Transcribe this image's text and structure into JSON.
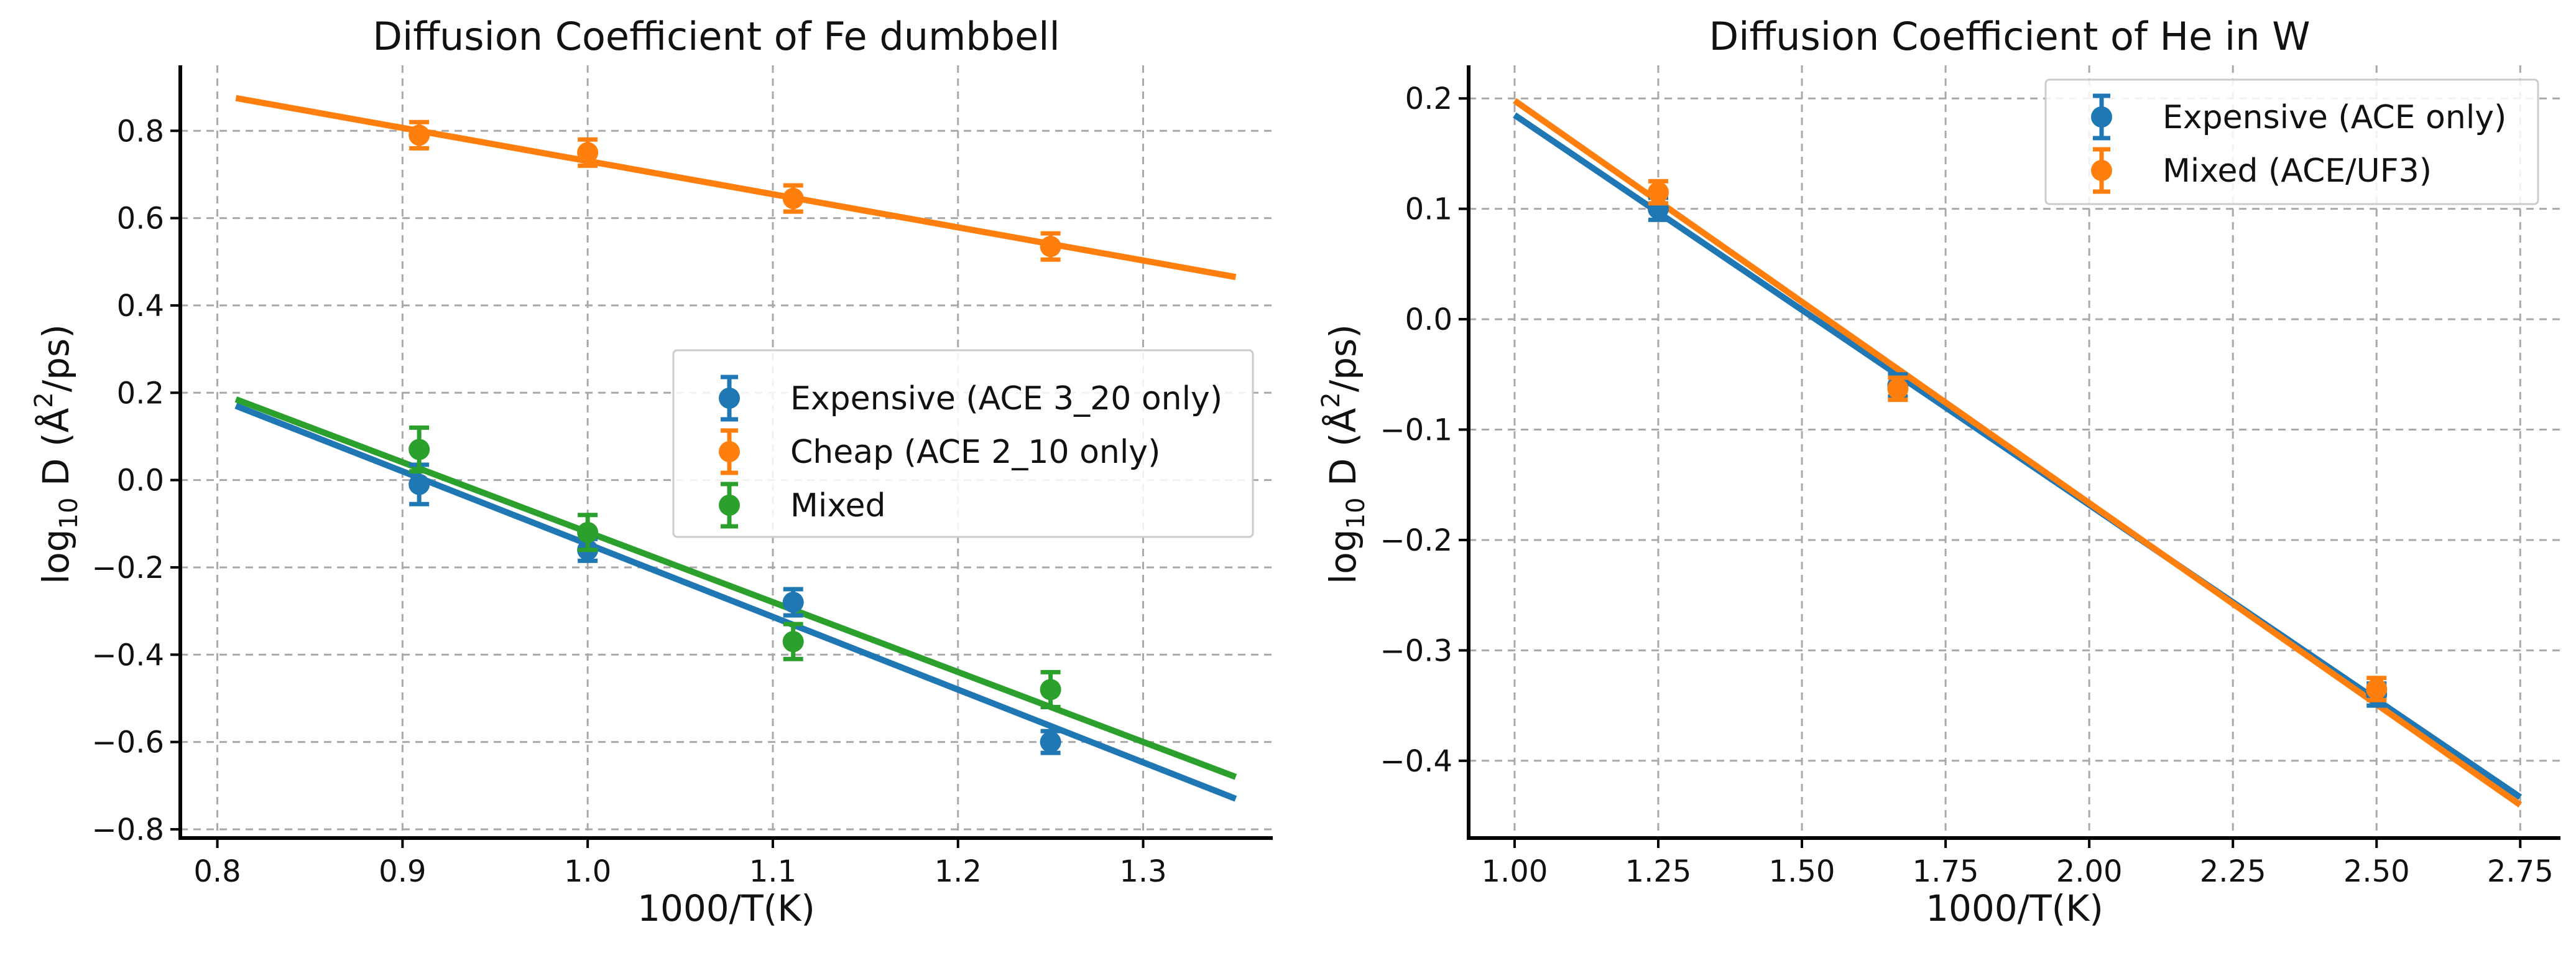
{
  "chart_data": [
    {
      "type": "scatter",
      "title": "Diffusion Coefficient of Fe dumbbell",
      "xlabel": "1000/T(K)",
      "ylabel_prefix": "log",
      "ylabel_sub": "10",
      "ylabel_unit": " D (Å",
      "ylabel_sup": "2",
      "ylabel_tail": "/ps)",
      "xlim": [
        0.78,
        1.37
      ],
      "ylim": [
        -0.82,
        0.95
      ],
      "xticks": [
        0.8,
        0.9,
        1.0,
        1.1,
        1.2,
        1.3
      ],
      "xtick_labels": [
        "0.8",
        "0.9",
        "1.0",
        "1.1",
        "1.2",
        "1.3"
      ],
      "yticks": [
        -0.8,
        -0.6,
        -0.4,
        -0.2,
        0.0,
        0.2,
        0.4,
        0.6,
        0.8
      ],
      "ytick_labels": [
        "−0.8",
        "−0.6",
        "−0.4",
        "−0.2",
        "0.0",
        "0.2",
        "0.4",
        "0.6",
        "0.8"
      ],
      "grid": true,
      "legend_position": "center-right",
      "series": [
        {
          "name": "Expensive (ACE 3_20 only)",
          "color": "#1f77b4",
          "x": [
            0.909,
            1.0,
            1.111,
            1.25
          ],
          "y": [
            -0.01,
            -0.16,
            -0.28,
            -0.6
          ],
          "yerr": [
            0.045,
            0.025,
            0.03,
            0.025
          ],
          "fit": {
            "x": [
              0.81,
              1.35
            ],
            "y": [
              0.17,
              -0.73
            ]
          }
        },
        {
          "name": "Cheap (ACE 2_10 only)",
          "color": "#ff7f0e",
          "x": [
            0.909,
            1.0,
            1.111,
            1.25
          ],
          "y": [
            0.79,
            0.75,
            0.645,
            0.535
          ],
          "yerr": [
            0.03,
            0.03,
            0.03,
            0.03
          ],
          "fit": {
            "x": [
              0.81,
              1.35
            ],
            "y": [
              0.875,
              0.465
            ]
          }
        },
        {
          "name": "Mixed",
          "color": "#2ca02c",
          "x": [
            0.909,
            1.0,
            1.111,
            1.25
          ],
          "y": [
            0.07,
            -0.12,
            -0.37,
            -0.48
          ],
          "yerr": [
            0.05,
            0.04,
            0.04,
            0.04
          ],
          "fit": {
            "x": [
              0.81,
              1.35
            ],
            "y": [
              0.185,
              -0.68
            ]
          }
        }
      ]
    },
    {
      "type": "scatter",
      "title": "Diffusion Coefficient of He in W",
      "xlabel": "1000/T(K)",
      "ylabel_prefix": "log",
      "ylabel_sub": "10",
      "ylabel_unit": " D (Å",
      "ylabel_sup": "2",
      "ylabel_tail": "/ps)",
      "xlim": [
        0.92,
        2.82
      ],
      "ylim": [
        -0.47,
        0.23
      ],
      "xticks": [
        1.0,
        1.25,
        1.5,
        1.75,
        2.0,
        2.25,
        2.5,
        2.75
      ],
      "xtick_labels": [
        "1.00",
        "1.25",
        "1.50",
        "1.75",
        "2.00",
        "2.25",
        "2.50",
        "2.75"
      ],
      "yticks": [
        -0.4,
        -0.3,
        -0.2,
        -0.1,
        0.0,
        0.1,
        0.2
      ],
      "ytick_labels": [
        "−0.4",
        "−0.3",
        "−0.2",
        "−0.1",
        "0.0",
        "0.1",
        "0.2"
      ],
      "grid": true,
      "legend_position": "top-right",
      "series": [
        {
          "name": "Expensive (ACE only)",
          "color": "#1f77b4",
          "x": [
            1.25,
            1.667,
            2.5
          ],
          "y": [
            0.1,
            -0.06,
            -0.34
          ],
          "yerr": [
            0.01,
            0.01,
            0.01
          ],
          "fit": {
            "x": [
              1.0,
              2.75
            ],
            "y": [
              0.185,
              -0.433
            ]
          }
        },
        {
          "name": "Mixed (ACE/UF3)",
          "color": "#ff7f0e",
          "x": [
            1.25,
            1.667,
            2.5
          ],
          "y": [
            0.115,
            -0.063,
            -0.335
          ],
          "yerr": [
            0.01,
            0.01,
            0.01
          ],
          "fit": {
            "x": [
              1.0,
              2.75
            ],
            "y": [
              0.198,
              -0.44
            ]
          }
        }
      ]
    }
  ]
}
